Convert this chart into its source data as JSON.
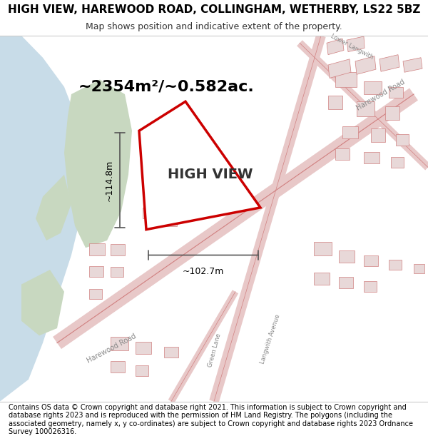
{
  "title_line1": "HIGH VIEW, HAREWOOD ROAD, COLLINGHAM, WETHERBY, LS22 5BZ",
  "title_line2": "Map shows position and indicative extent of the property.",
  "area_label": "~2354m²/~0.582ac.",
  "property_label": "HIGH VIEW",
  "dim_width": "~102.7m",
  "dim_height": "~114.8m",
  "footer_text": "Contains OS data © Crown copyright and database right 2021. This information is subject to Crown copyright and database rights 2023 and is reproduced with the permission of HM Land Registry. The polygons (including the associated geometry, namely x, y co-ordinates) are subject to Crown copyright and database rights 2023 Ordnance Survey 100026316.",
  "map_bg": "#f5f2ee",
  "water_color": "#c8dce8",
  "green_color": "#c8d8c0",
  "road_fill_color": "#e8c8c8",
  "road_line_color": "#d08080",
  "property_fill": "#ffffff",
  "property_edge": "#cc0000",
  "dim_line_color": "#555555",
  "title_fontsize": 11,
  "subtitle_fontsize": 9,
  "area_fontsize": 16,
  "property_label_fontsize": 14,
  "dim_fontsize": 9,
  "footer_fontsize": 7
}
